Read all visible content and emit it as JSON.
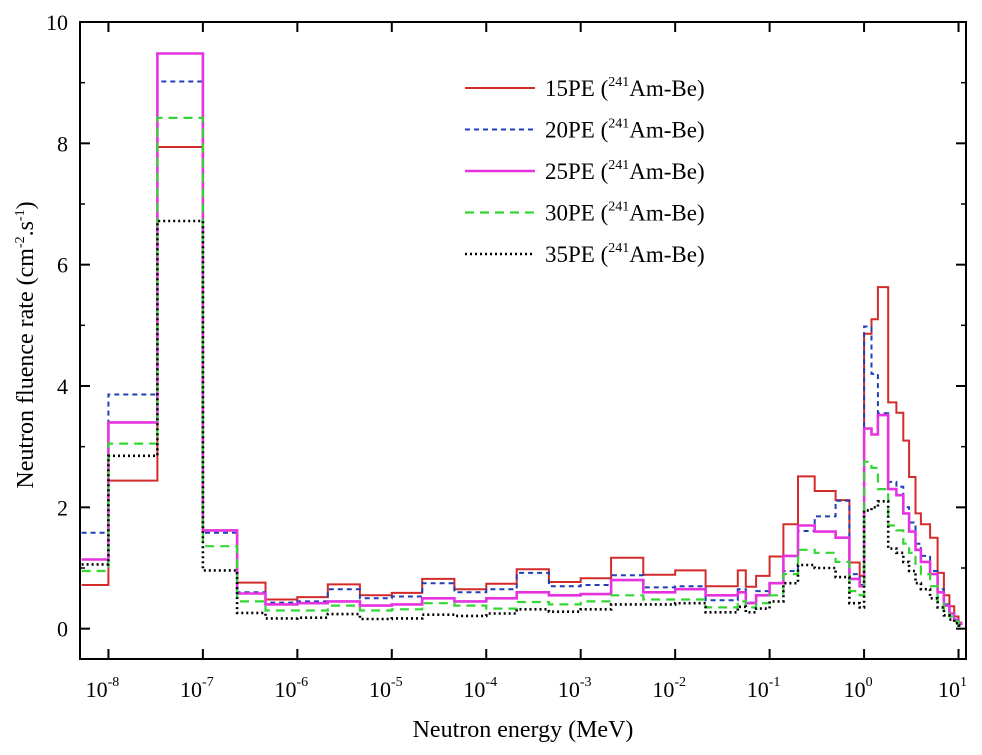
{
  "chart_data": {
    "type": "line",
    "step": true,
    "xlabel": "Neutron energy (MeV)",
    "ylabel": {
      "base": "Neutron fluence rate (cm",
      "sup1": "-2",
      "mid": ".s",
      "sup2": "-1",
      "end": ")"
    },
    "xscale": "log",
    "xlim": [
      5e-09,
      12
    ],
    "ylim": [
      -0.5,
      10
    ],
    "xticks": [
      {
        "exp": -8,
        "base": "10",
        "sup": "-8"
      },
      {
        "exp": -7,
        "base": "10",
        "sup": "-7"
      },
      {
        "exp": -6,
        "base": "10",
        "sup": "-6"
      },
      {
        "exp": -5,
        "base": "10",
        "sup": "-5"
      },
      {
        "exp": -4,
        "base": "10",
        "sup": "-4"
      },
      {
        "exp": -3,
        "base": "10",
        "sup": "-3"
      },
      {
        "exp": -2,
        "base": "10",
        "sup": "-2"
      },
      {
        "exp": -1,
        "base": "10",
        "sup": "-1"
      },
      {
        "exp": 0,
        "base": "10",
        "sup": "0"
      },
      {
        "exp": 1,
        "base": "10",
        "sup": "1"
      }
    ],
    "yticks": [
      {
        "value": 0,
        "label": "0"
      },
      {
        "value": 2,
        "label": "2"
      },
      {
        "value": 4,
        "label": "4"
      },
      {
        "value": 6,
        "label": "6"
      },
      {
        "value": 8,
        "label": "8"
      },
      {
        "value": 10,
        "label": "10"
      }
    ],
    "grid": false,
    "legend_position": "top-right",
    "bin_edges_mev": [
      5.2e-09,
      1e-08,
      3.3e-08,
      1e-07,
      2.3e-07,
      4.6e-07,
      1e-06,
      2.1e-06,
      4.6e-06,
      1e-05,
      2.1e-05,
      4.6e-05,
      0.0001,
      0.00021,
      0.00046,
      0.001,
      0.0021,
      0.0046,
      0.01,
      0.021,
      0.046,
      0.056,
      0.072,
      0.1,
      0.14,
      0.2,
      0.3,
      0.5,
      0.7,
      0.9,
      1.0,
      1.2,
      1.4,
      1.8,
      2.2,
      2.6,
      3.0,
      3.5,
      4.0,
      5.0,
      6.0,
      7.0,
      8.0,
      9.0,
      10.0,
      11.0
    ],
    "series": [
      {
        "name": "15PE (",
        "sup": "241",
        "suffix": "Am-Be)",
        "color": "#d42a2a",
        "dash": "",
        "width": 2,
        "values": [
          0.72,
          2.44,
          7.94,
          1.62,
          0.76,
          0.48,
          0.52,
          0.73,
          0.55,
          0.59,
          0.82,
          0.65,
          0.74,
          0.98,
          0.77,
          0.83,
          1.17,
          0.89,
          0.96,
          0.7,
          0.96,
          0.69,
          0.87,
          1.19,
          1.72,
          2.51,
          2.27,
          2.12,
          1.09,
          0.87,
          4.86,
          5.1,
          5.63,
          3.73,
          3.56,
          3.1,
          2.5,
          1.9,
          1.72,
          1.5,
          0.92,
          0.55,
          0.37,
          0.2,
          0.1
        ]
      },
      {
        "name": "20PE (",
        "sup": "241",
        "suffix": "Am-Be)",
        "color": "#1f3fb8",
        "dash": "5,4",
        "width": 2,
        "values": [
          1.58,
          3.86,
          9.02,
          1.58,
          0.6,
          0.43,
          0.45,
          0.65,
          0.5,
          0.53,
          0.75,
          0.6,
          0.65,
          0.92,
          0.7,
          0.72,
          0.88,
          0.68,
          0.7,
          0.47,
          0.65,
          0.43,
          0.62,
          0.75,
          0.95,
          1.61,
          1.85,
          2.11,
          0.9,
          0.72,
          4.98,
          4.2,
          3.55,
          2.42,
          2.34,
          2.0,
          1.75,
          1.4,
          1.2,
          0.95,
          0.65,
          0.4,
          0.27,
          0.15,
          0.08
        ]
      },
      {
        "name": "25PE (",
        "sup": "241",
        "suffix": "Am-Be)",
        "color": "#e633e0",
        "dash": "",
        "width": 2.6,
        "values": [
          1.14,
          3.4,
          9.48,
          1.62,
          0.58,
          0.4,
          0.42,
          0.45,
          0.38,
          0.4,
          0.5,
          0.45,
          0.5,
          0.6,
          0.55,
          0.57,
          0.8,
          0.6,
          0.65,
          0.55,
          0.6,
          0.42,
          0.55,
          0.75,
          1.2,
          1.7,
          1.6,
          1.5,
          0.82,
          0.7,
          3.3,
          3.2,
          3.52,
          2.3,
          2.2,
          1.9,
          1.6,
          1.3,
          1.1,
          0.9,
          0.6,
          0.38,
          0.25,
          0.14,
          0.08
        ]
      },
      {
        "name": "30PE (",
        "sup": "241",
        "suffix": "Am-Be)",
        "color": "#33d633",
        "dash": "9,6",
        "width": 2.2,
        "values": [
          0.95,
          3.05,
          8.42,
          1.36,
          0.45,
          0.3,
          0.3,
          0.38,
          0.3,
          0.32,
          0.42,
          0.38,
          0.33,
          0.44,
          0.4,
          0.45,
          0.55,
          0.48,
          0.48,
          0.35,
          0.45,
          0.35,
          0.42,
          0.55,
          0.9,
          1.3,
          1.25,
          1.1,
          0.62,
          0.55,
          2.75,
          2.65,
          2.3,
          1.7,
          1.62,
          1.4,
          1.25,
          1.05,
          0.9,
          0.7,
          0.45,
          0.3,
          0.2,
          0.12,
          0.06
        ]
      },
      {
        "name": "35PE (",
        "sup": "241",
        "suffix": "Am-Be)",
        "color": "#000000",
        "dash": "2,3",
        "width": 2.6,
        "values": [
          1.06,
          2.85,
          6.72,
          0.96,
          0.26,
          0.17,
          0.18,
          0.24,
          0.16,
          0.17,
          0.23,
          0.21,
          0.25,
          0.32,
          0.28,
          0.32,
          0.4,
          0.4,
          0.42,
          0.27,
          0.36,
          0.27,
          0.33,
          0.45,
          0.75,
          1.05,
          1.0,
          0.85,
          0.42,
          0.35,
          1.95,
          2.0,
          2.1,
          1.32,
          1.25,
          1.1,
          0.95,
          0.75,
          0.65,
          0.5,
          0.35,
          0.22,
          0.15,
          0.09,
          0.05
        ]
      }
    ]
  }
}
